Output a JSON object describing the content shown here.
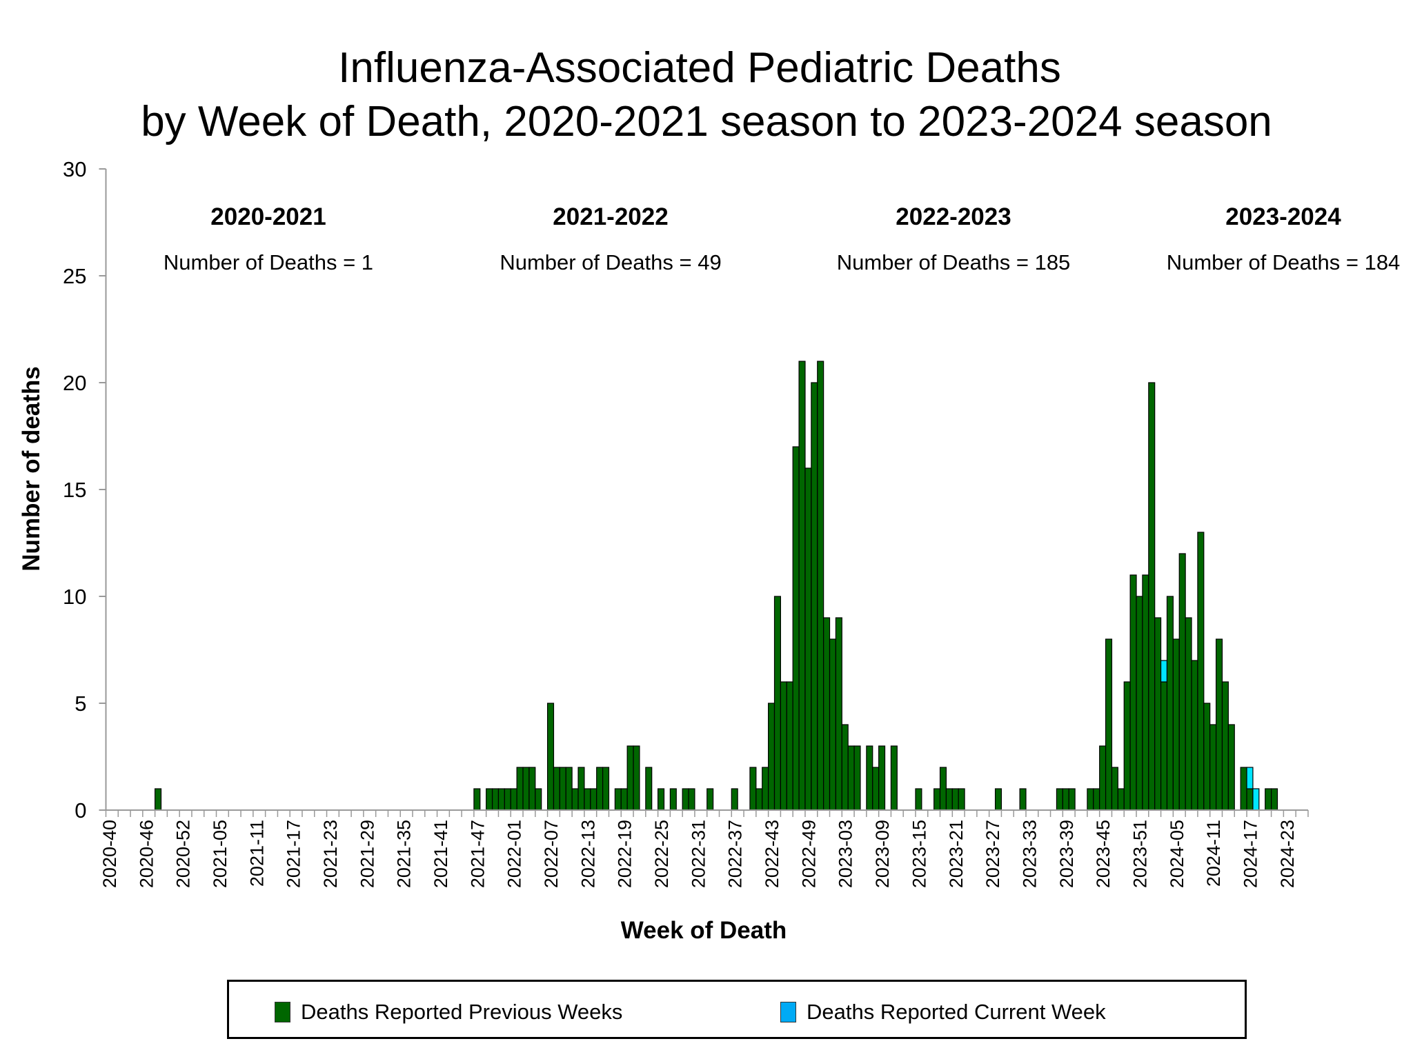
{
  "chart_data": {
    "type": "bar",
    "stacked": true,
    "title": [
      "Influenza-Associated Pediatric Deaths",
      "by Week of Death, 2020-2021 season to 2023-2024 season"
    ],
    "xlabel": "Week of Death",
    "ylabel": "Number of deaths",
    "ylim": [
      0,
      30
    ],
    "yticks": [
      0,
      5,
      10,
      15,
      20,
      25,
      30
    ],
    "grid": false,
    "legend_position": "bottom",
    "categories": [
      "2020-40",
      "2020-41",
      "2020-42",
      "2020-43",
      "2020-44",
      "2020-45",
      "2020-46",
      "2020-47",
      "2020-48",
      "2020-49",
      "2020-50",
      "2020-51",
      "2020-52",
      "2020-53",
      "2021-01",
      "2021-02",
      "2021-03",
      "2021-04",
      "2021-05",
      "2021-06",
      "2021-07",
      "2021-08",
      "2021-09",
      "2021-10",
      "2021-11",
      "2021-12",
      "2021-13",
      "2021-14",
      "2021-15",
      "2021-16",
      "2021-17",
      "2021-18",
      "2021-19",
      "2021-20",
      "2021-21",
      "2021-22",
      "2021-23",
      "2021-24",
      "2021-25",
      "2021-26",
      "2021-27",
      "2021-28",
      "2021-29",
      "2021-30",
      "2021-31",
      "2021-32",
      "2021-33",
      "2021-34",
      "2021-35",
      "2021-36",
      "2021-37",
      "2021-38",
      "2021-39",
      "2021-40",
      "2021-41",
      "2021-42",
      "2021-43",
      "2021-44",
      "2021-45",
      "2021-46",
      "2021-47",
      "2021-48",
      "2021-49",
      "2021-50",
      "2021-51",
      "2021-52",
      "2022-01",
      "2022-02",
      "2022-03",
      "2022-04",
      "2022-05",
      "2022-06",
      "2022-07",
      "2022-08",
      "2022-09",
      "2022-10",
      "2022-11",
      "2022-12",
      "2022-13",
      "2022-14",
      "2022-15",
      "2022-16",
      "2022-17",
      "2022-18",
      "2022-19",
      "2022-20",
      "2022-21",
      "2022-22",
      "2022-23",
      "2022-24",
      "2022-25",
      "2022-26",
      "2022-27",
      "2022-28",
      "2022-29",
      "2022-30",
      "2022-31",
      "2022-32",
      "2022-33",
      "2022-34",
      "2022-35",
      "2022-36",
      "2022-37",
      "2022-38",
      "2022-39",
      "2022-40",
      "2022-41",
      "2022-42",
      "2022-43",
      "2022-44",
      "2022-45",
      "2022-46",
      "2022-47",
      "2022-48",
      "2022-49",
      "2022-50",
      "2022-51",
      "2022-52",
      "2023-01",
      "2023-02",
      "2023-03",
      "2023-04",
      "2023-05",
      "2023-06",
      "2023-07",
      "2023-08",
      "2023-09",
      "2023-10",
      "2023-11",
      "2023-12",
      "2023-13",
      "2023-14",
      "2023-15",
      "2023-16",
      "2023-17",
      "2023-18",
      "2023-19",
      "2023-20",
      "2023-21",
      "2023-22",
      "2023-23",
      "2023-24",
      "2023-25",
      "2023-26",
      "2023-27",
      "2023-28",
      "2023-29",
      "2023-30",
      "2023-31",
      "2023-32",
      "2023-33",
      "2023-34",
      "2023-35",
      "2023-36",
      "2023-37",
      "2023-38",
      "2023-39",
      "2023-40",
      "2023-41",
      "2023-42",
      "2023-43",
      "2023-44",
      "2023-45",
      "2023-46",
      "2023-47",
      "2023-48",
      "2023-49",
      "2023-50",
      "2023-51",
      "2023-52",
      "2024-01",
      "2024-02",
      "2024-03",
      "2024-04",
      "2024-05",
      "2024-06",
      "2024-07",
      "2024-08",
      "2024-09",
      "2024-10",
      "2024-11",
      "2024-12",
      "2024-13",
      "2024-14",
      "2024-15",
      "2024-16",
      "2024-17",
      "2024-18",
      "2024-19",
      "2024-20",
      "2024-21",
      "2024-22",
      "2024-23",
      "2024-24",
      "2024-25",
      "2024-26"
    ],
    "series": [
      {
        "name": "Deaths Reported Previous Weeks",
        "color": "#006600",
        "legend_color": "#006600",
        "values": [
          0,
          0,
          0,
          0,
          0,
          0,
          0,
          0,
          1,
          0,
          0,
          0,
          0,
          0,
          0,
          0,
          0,
          0,
          0,
          0,
          0,
          0,
          0,
          0,
          0,
          0,
          0,
          0,
          0,
          0,
          0,
          0,
          0,
          0,
          0,
          0,
          0,
          0,
          0,
          0,
          0,
          0,
          0,
          0,
          0,
          0,
          0,
          0,
          0,
          0,
          0,
          0,
          0,
          0,
          0,
          0,
          0,
          0,
          0,
          0,
          1,
          0,
          1,
          1,
          1,
          1,
          1,
          2,
          2,
          2,
          1,
          0,
          5,
          2,
          2,
          2,
          1,
          2,
          1,
          1,
          2,
          2,
          0,
          1,
          1,
          3,
          3,
          0,
          2,
          0,
          1,
          0,
          1,
          0,
          1,
          1,
          0,
          0,
          1,
          0,
          0,
          0,
          1,
          0,
          0,
          2,
          1,
          2,
          5,
          10,
          6,
          6,
          17,
          21,
          16,
          20,
          21,
          9,
          8,
          9,
          4,
          3,
          3,
          0,
          3,
          2,
          3,
          0,
          3,
          0,
          0,
          0,
          1,
          0,
          0,
          1,
          2,
          1,
          1,
          1,
          0,
          0,
          0,
          0,
          0,
          1,
          0,
          0,
          0,
          1,
          0,
          0,
          0,
          0,
          0,
          1,
          1,
          1,
          0,
          0,
          1,
          1,
          3,
          8,
          2,
          1,
          6,
          11,
          10,
          11,
          20,
          9,
          6,
          10,
          8,
          12,
          9,
          7,
          13,
          5,
          4,
          8,
          6,
          4,
          0,
          2,
          1,
          0,
          0,
          1,
          1,
          0,
          0,
          0,
          0,
          0
        ]
      },
      {
        "name": "Deaths Reported Current Week",
        "color": "#00E5FF",
        "legend_color": "#00AAF5",
        "values": [
          0,
          0,
          0,
          0,
          0,
          0,
          0,
          0,
          0,
          0,
          0,
          0,
          0,
          0,
          0,
          0,
          0,
          0,
          0,
          0,
          0,
          0,
          0,
          0,
          0,
          0,
          0,
          0,
          0,
          0,
          0,
          0,
          0,
          0,
          0,
          0,
          0,
          0,
          0,
          0,
          0,
          0,
          0,
          0,
          0,
          0,
          0,
          0,
          0,
          0,
          0,
          0,
          0,
          0,
          0,
          0,
          0,
          0,
          0,
          0,
          0,
          0,
          0,
          0,
          0,
          0,
          0,
          0,
          0,
          0,
          0,
          0,
          0,
          0,
          0,
          0,
          0,
          0,
          0,
          0,
          0,
          0,
          0,
          0,
          0,
          0,
          0,
          0,
          0,
          0,
          0,
          0,
          0,
          0,
          0,
          0,
          0,
          0,
          0,
          0,
          0,
          0,
          0,
          0,
          0,
          0,
          0,
          0,
          0,
          0,
          0,
          0,
          0,
          0,
          0,
          0,
          0,
          0,
          0,
          0,
          0,
          0,
          0,
          0,
          0,
          0,
          0,
          0,
          0,
          0,
          0,
          0,
          0,
          0,
          0,
          0,
          0,
          0,
          0,
          0,
          0,
          0,
          0,
          0,
          0,
          0,
          0,
          0,
          0,
          0,
          0,
          0,
          0,
          0,
          0,
          0,
          0,
          0,
          0,
          0,
          0,
          0,
          0,
          0,
          0,
          0,
          0,
          0,
          0,
          0,
          0,
          0,
          1,
          0,
          0,
          0,
          0,
          0,
          0,
          0,
          0,
          0,
          0,
          0,
          0,
          0,
          1,
          1,
          0,
          0,
          0,
          0,
          0,
          0,
          0,
          0
        ]
      }
    ],
    "annotations": [
      {
        "season": "2020-2021",
        "text": "Number of Deaths = 1"
      },
      {
        "season": "2021-2022",
        "text": "Number of Deaths = 49"
      },
      {
        "season": "2022-2023",
        "text": "Number of Deaths = 185"
      },
      {
        "season": "2023-2024",
        "text": "Number of Deaths = 184"
      }
    ]
  }
}
